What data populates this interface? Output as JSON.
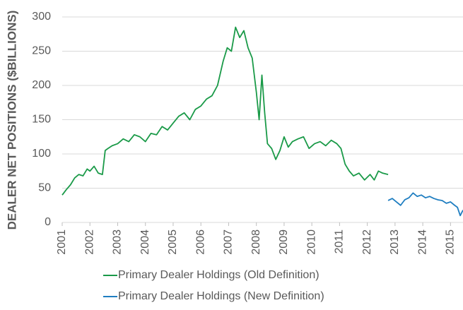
{
  "chart_data": {
    "type": "line",
    "ylabel": "DEALER NET POSITIONS ($BILLIONS)",
    "xlim": [
      2001,
      2015.45
    ],
    "xticks": [
      2001,
      2002,
      2003,
      2004,
      2005,
      2006,
      2007,
      2008,
      2009,
      2010,
      2011,
      2012,
      2013,
      2014,
      2015
    ],
    "ylim": [
      0,
      300
    ],
    "yticks": [
      0,
      50,
      100,
      150,
      200,
      250,
      300
    ],
    "grid": true,
    "legend": "bottom",
    "series": [
      {
        "name": "Primary Dealer Holdings (Old Definition)",
        "color": "#1a9a48",
        "x": [
          2001.0,
          2001.15,
          2001.3,
          2001.45,
          2001.6,
          2001.75,
          2001.9,
          2002.0,
          2002.15,
          2002.3,
          2002.45,
          2002.55,
          2002.65,
          2002.8,
          2003.0,
          2003.2,
          2003.4,
          2003.6,
          2003.8,
          2004.0,
          2004.2,
          2004.4,
          2004.6,
          2004.8,
          2005.0,
          2005.2,
          2005.4,
          2005.6,
          2005.8,
          2006.0,
          2006.2,
          2006.4,
          2006.6,
          2006.8,
          2006.95,
          2007.1,
          2007.25,
          2007.4,
          2007.55,
          2007.7,
          2007.85,
          2008.0,
          2008.1,
          2008.2,
          2008.3,
          2008.4,
          2008.55,
          2008.7,
          2008.85,
          2009.0,
          2009.15,
          2009.3,
          2009.5,
          2009.7,
          2009.9,
          2010.1,
          2010.3,
          2010.5,
          2010.7,
          2010.9,
          2011.05,
          2011.2,
          2011.35,
          2011.5,
          2011.7,
          2011.9,
          2012.1,
          2012.25,
          2012.4,
          2012.55,
          2012.75
        ],
        "values": [
          40,
          48,
          55,
          65,
          70,
          68,
          78,
          75,
          82,
          72,
          70,
          105,
          108,
          112,
          115,
          122,
          118,
          128,
          125,
          118,
          130,
          128,
          140,
          135,
          145,
          155,
          160,
          150,
          165,
          170,
          180,
          185,
          200,
          235,
          255,
          250,
          285,
          270,
          280,
          255,
          240,
          190,
          150,
          215,
          160,
          115,
          108,
          92,
          105,
          125,
          110,
          118,
          122,
          125,
          108,
          115,
          118,
          112,
          120,
          115,
          108,
          85,
          75,
          68,
          72,
          62,
          70,
          62,
          75,
          72,
          70
        ]
      },
      {
        "name": "Primary Dealer Holdings (New Definition)",
        "color": "#1f7ec1",
        "x": [
          2012.75,
          2012.9,
          2013.05,
          2013.2,
          2013.35,
          2013.5,
          2013.65,
          2013.8,
          2013.95,
          2014.1,
          2014.25,
          2014.4,
          2014.55,
          2014.7,
          2014.85,
          2015.0,
          2015.15,
          2015.25,
          2015.35,
          2015.45
        ],
        "values": [
          32,
          35,
          30,
          25,
          33,
          36,
          43,
          38,
          40,
          36,
          38,
          35,
          33,
          32,
          28,
          30,
          25,
          22,
          10,
          18
        ]
      }
    ]
  }
}
